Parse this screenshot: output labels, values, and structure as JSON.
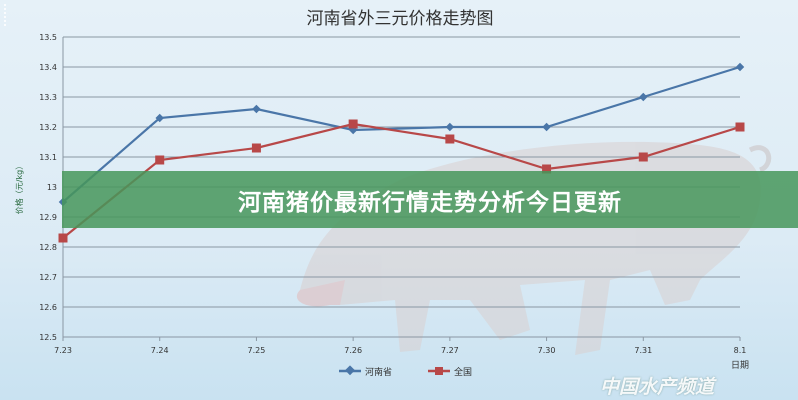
{
  "chart_data": {
    "type": "line",
    "title": "河南省外三元价格走势图",
    "xlabel": "日期",
    "ylabel": "价格（元/kg）",
    "categories": [
      "7.23",
      "7.24",
      "7.25",
      "7.26",
      "7.27",
      "7.30",
      "7.31",
      "8.1"
    ],
    "ylim": [
      12.5,
      13.5
    ],
    "yticks": [
      "12.5",
      "12.6",
      "12.7",
      "12.8",
      "12.9",
      "13",
      "13.1",
      "13.2",
      "13.3",
      "13.4",
      "13.5"
    ],
    "grid": true,
    "legend_position": "bottom",
    "series": [
      {
        "name": "河南省",
        "values": [
          12.95,
          13.23,
          13.26,
          13.19,
          13.2,
          13.2,
          13.3,
          13.4
        ],
        "color": "#4a76a8",
        "marker": "diamond"
      },
      {
        "name": "全国",
        "values": [
          12.83,
          13.09,
          13.13,
          13.21,
          13.16,
          13.06,
          13.1,
          13.2
        ],
        "color": "#b84848",
        "marker": "square"
      }
    ]
  },
  "banner": {
    "headline": "河南猪价最新行情走势分析今日更新",
    "color": "#46965a"
  },
  "watermark": "中国水产频道"
}
